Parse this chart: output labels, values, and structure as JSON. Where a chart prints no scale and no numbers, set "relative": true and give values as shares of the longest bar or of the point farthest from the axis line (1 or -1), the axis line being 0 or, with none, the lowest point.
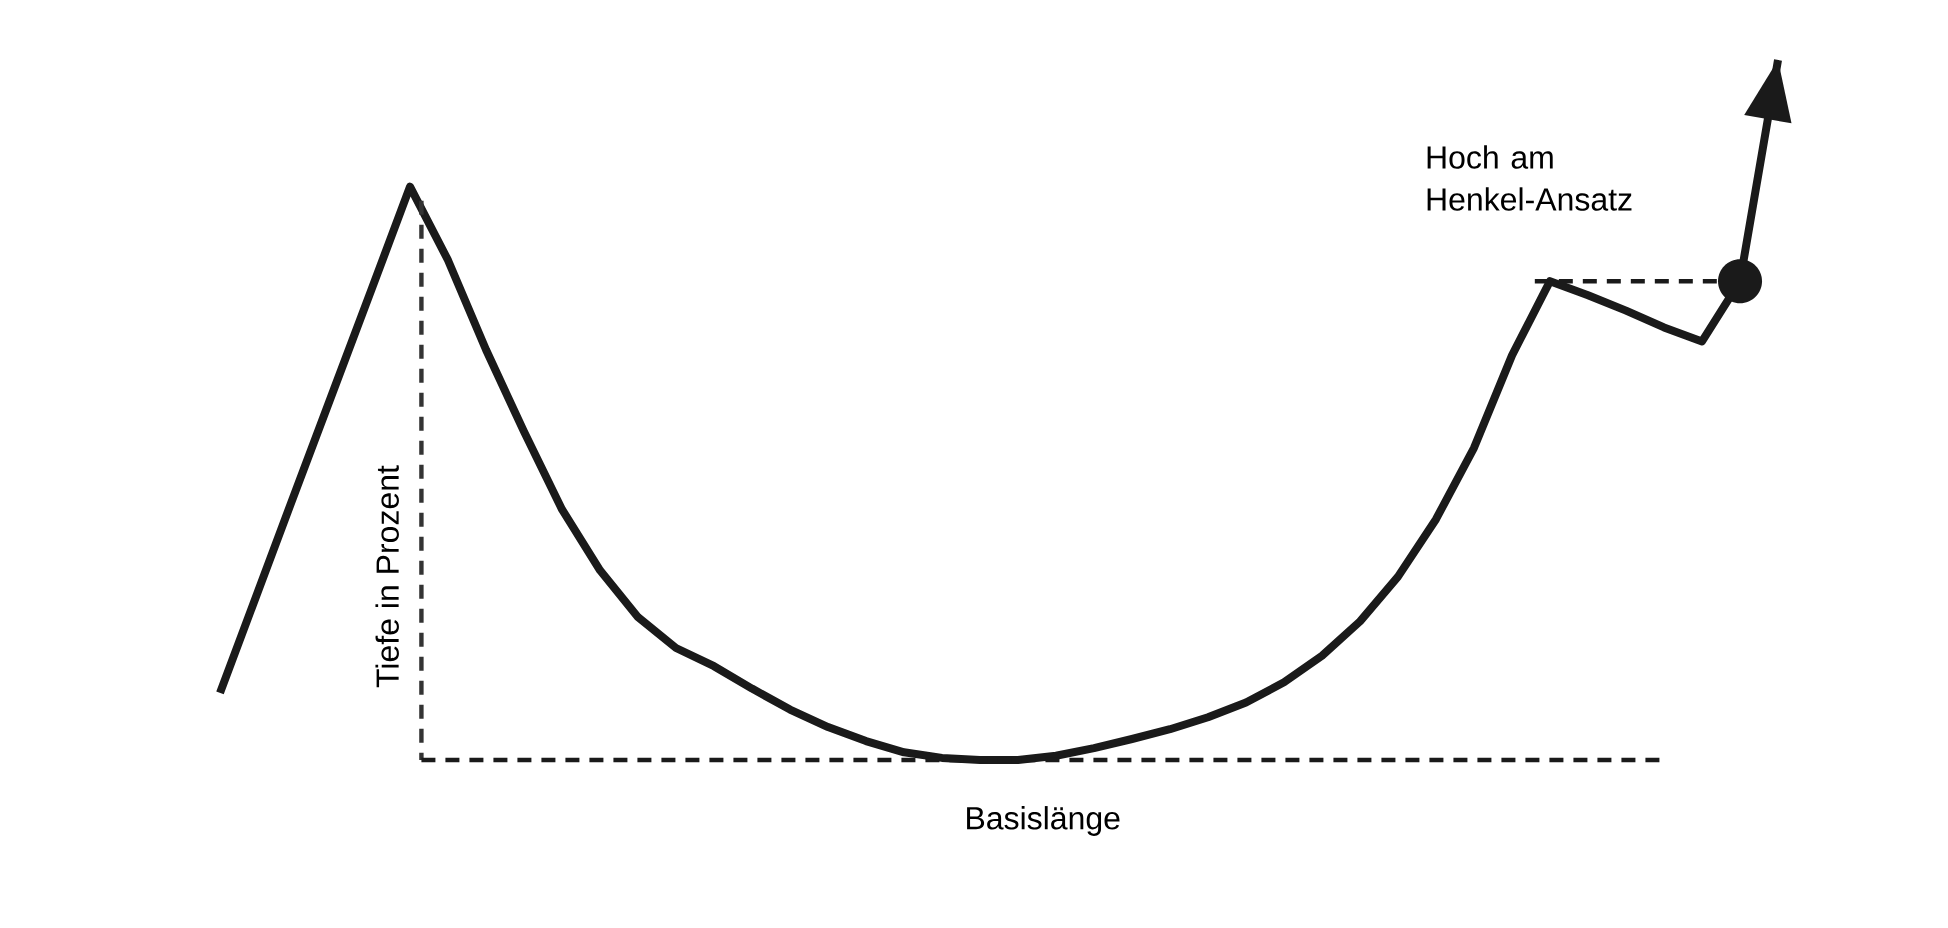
{
  "chart_data": {
    "type": "line",
    "relative": true,
    "annotations": [
      "Tiefe in Prozent"
    ],
    "categories": [
      null,
      null,
      null,
      null,
      null,
      null,
      null,
      null,
      null,
      null,
      null,
      null,
      null,
      null,
      null,
      null,
      null,
      null,
      null,
      null,
      null,
      null,
      null,
      null,
      null,
      null,
      null,
      null,
      null,
      null,
      null,
      null,
      null,
      null,
      null,
      null,
      null,
      null,
      null,
      null,
      null,
      null
    ],
    "series": [
      {
        "color": "#1a1a1a",
        "line_style": "solid",
        "values": [
          0.096,
          0.241,
          0.386,
          0.53,
          0.674,
          0.819,
          0.714,
          0.586,
          0.469,
          0.358,
          0.271,
          0.204,
          0.16,
          0.134,
          0.102,
          0.072,
          0.047,
          0.027,
          0.011,
          0.003,
          0,
          0,
          0.006,
          0.017,
          0.03,
          0.044,
          0.061,
          0.082,
          0.111,
          0.149,
          0.198,
          0.262,
          0.344,
          0.446,
          0.578,
          0.684,
          0.664,
          0.642,
          0.618,
          0.598,
          0.684,
          1.0
        ]
      }
    ],
    "ref_lines": [
      {
        "axis": "y",
        "value": 0,
        "label": "Basislänge",
        "line_style": "dashed",
        "color": "#1a1a1a"
      },
      {
        "axis": "y",
        "value": 0.684,
        "label": "Hoch am Henkel-Ansatz",
        "line_style": "dashed",
        "color": "#1a1a1a"
      }
    ]
  }
}
